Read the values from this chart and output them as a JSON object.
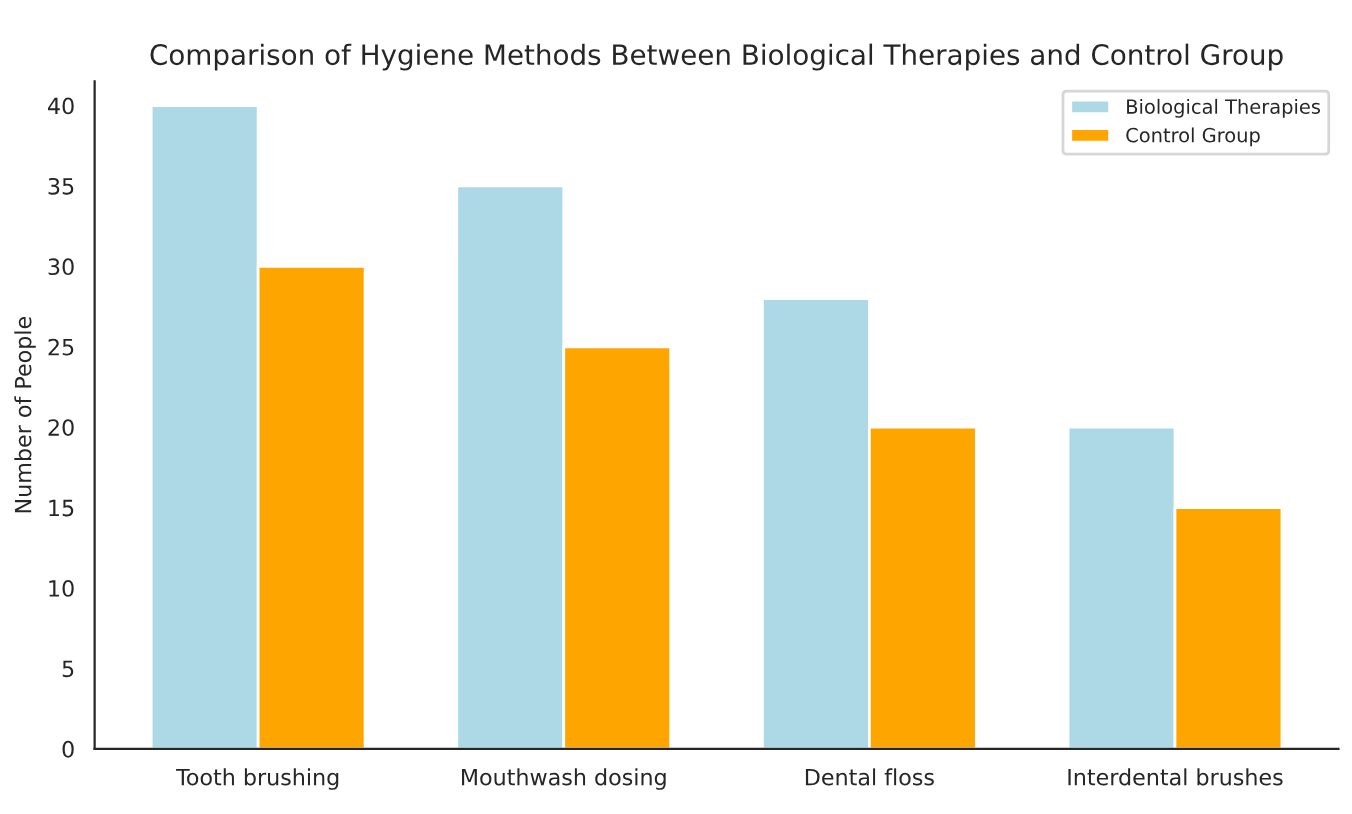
{
  "chart_data": {
    "type": "bar",
    "title": "Comparison of Hygiene Methods Between Biological Therapies and Control Group",
    "ylabel": "Number of People",
    "categories": [
      "Tooth brushing",
      "Mouthwash dosing",
      "Dental floss",
      "Interdental brushes"
    ],
    "series": [
      {
        "name": "Biological Therapies",
        "color": "#add8e6",
        "values": [
          40,
          35,
          28,
          20
        ]
      },
      {
        "name": "Control Group",
        "color": "#ffa500",
        "values": [
          30,
          25,
          20,
          15
        ]
      }
    ],
    "ylim": [
      0,
      41.5
    ],
    "yticks": [
      0,
      5,
      10,
      15,
      20,
      25,
      30,
      35,
      40
    ],
    "legend": "top right"
  }
}
